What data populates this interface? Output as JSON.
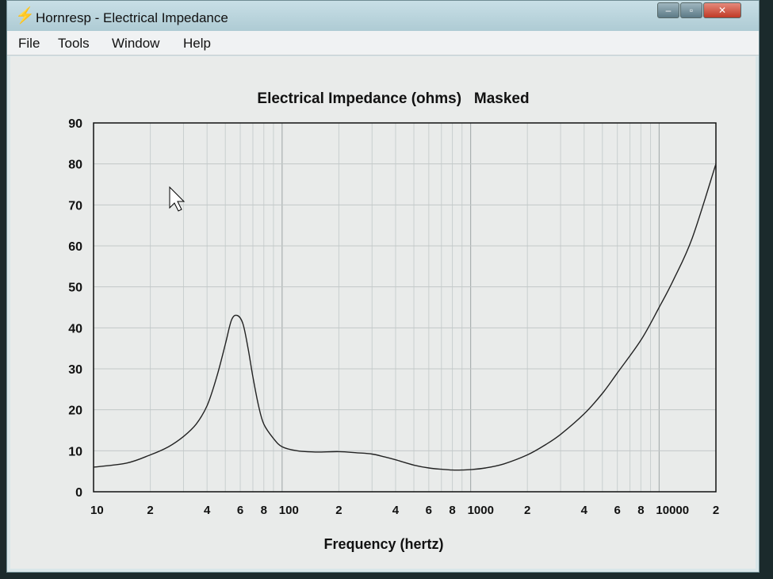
{
  "window": {
    "title": "Hornresp - Electrical Impedance",
    "app_icon": "lightning-icon",
    "controls": {
      "minimize": "–",
      "maximize": "▫",
      "close": "✕"
    }
  },
  "menu": [
    {
      "label": "File"
    },
    {
      "label": "Tools"
    },
    {
      "label": "Window"
    },
    {
      "label": "Help"
    }
  ],
  "chart_data": {
    "type": "line",
    "title": "Electrical Impedance (ohms)   Masked",
    "xlabel": "Frequency (hertz)",
    "ylabel": "",
    "x_scale": "log",
    "xlim": [
      10,
      20000
    ],
    "ylim": [
      0,
      90
    ],
    "grid": true,
    "y_ticks": [
      "0",
      "10",
      "20",
      "30",
      "40",
      "50",
      "60",
      "70",
      "80",
      "90"
    ],
    "x_ticks": [
      {
        "value": 10,
        "label": "10"
      },
      {
        "value": 20,
        "label": "2"
      },
      {
        "value": 40,
        "label": "4"
      },
      {
        "value": 60,
        "label": "6"
      },
      {
        "value": 80,
        "label": "8"
      },
      {
        "value": 100,
        "label": "100"
      },
      {
        "value": 200,
        "label": "2"
      },
      {
        "value": 400,
        "label": "4"
      },
      {
        "value": 600,
        "label": "6"
      },
      {
        "value": 800,
        "label": "8"
      },
      {
        "value": 1000,
        "label": "1000"
      },
      {
        "value": 2000,
        "label": "2"
      },
      {
        "value": 4000,
        "label": "4"
      },
      {
        "value": 6000,
        "label": "6"
      },
      {
        "value": 8000,
        "label": "8"
      },
      {
        "value": 10000,
        "label": "10000"
      },
      {
        "value": 20000,
        "label": "2"
      }
    ],
    "series": [
      {
        "x": [
          10,
          15,
          20,
          25,
          30,
          35,
          40,
          45,
          50,
          54,
          58,
          62,
          66,
          70,
          75,
          80,
          90,
          100,
          120,
          150,
          200,
          250,
          300,
          350,
          400,
          500,
          600,
          700,
          800,
          900,
          1000,
          1200,
          1500,
          2000,
          2500,
          3000,
          4000,
          5000,
          6000,
          8000,
          10000,
          12000,
          15000,
          20000
        ],
        "y": [
          6,
          7,
          9,
          11,
          13.5,
          16.5,
          21,
          28,
          36,
          42,
          43,
          41,
          35,
          28,
          21,
          16.5,
          13,
          11,
          10,
          9.7,
          9.8,
          9.5,
          9.2,
          8.5,
          7.8,
          6.5,
          5.8,
          5.5,
          5.3,
          5.3,
          5.4,
          5.8,
          6.8,
          9,
          11.5,
          14,
          19,
          24,
          29,
          37,
          45,
          52,
          62,
          80
        ]
      }
    ]
  }
}
